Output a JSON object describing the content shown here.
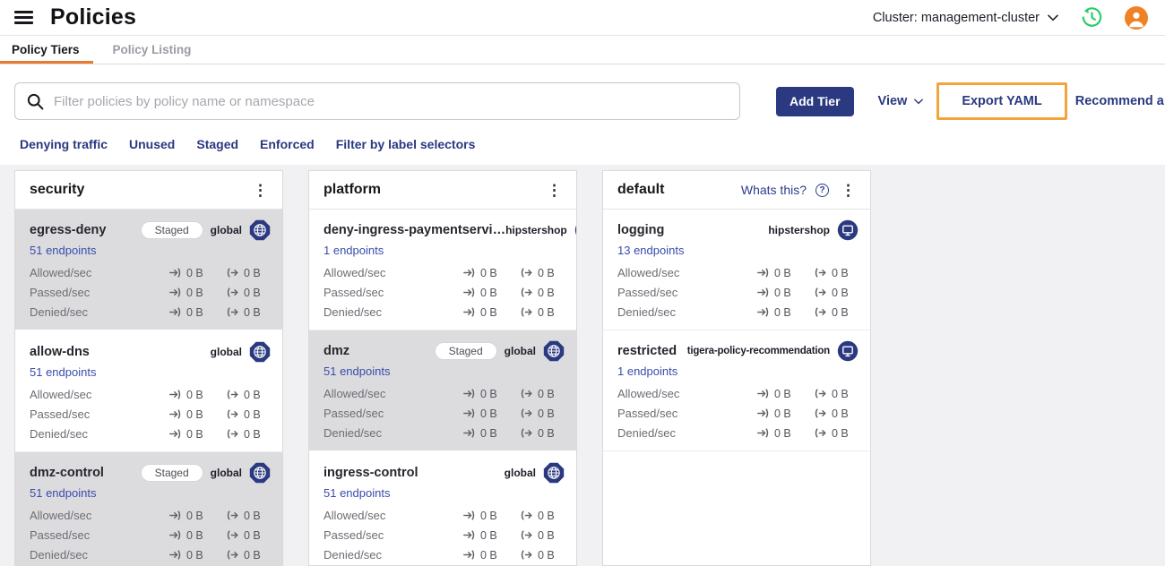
{
  "header": {
    "title": "Policies",
    "cluster_selector": "Cluster: management-cluster"
  },
  "tabs": {
    "policy_tiers": "Policy Tiers",
    "policy_listing": "Policy Listing"
  },
  "toolbar": {
    "search_placeholder": "Filter policies by policy name or namespace",
    "add_tier_button": "Add Tier",
    "view_button": "View",
    "export_yaml_button": "Export YAML",
    "recommend_button": "Recommend a Policy"
  },
  "quick_filters": [
    "Denying traffic",
    "Unused",
    "Staged",
    "Enforced",
    "Filter by label selectors"
  ],
  "icons": {
    "menu": "hamburger-icon",
    "search": "search-icon",
    "cluster_chevron": "chevron-down-icon",
    "history": "history-clock-icon",
    "avatar": "user-avatar-icon",
    "tier_menu": "kebab-menu-icon",
    "help": "question-circle-icon",
    "global_scope": "globe-badge-icon",
    "namespace_scope": "namespace-monitor-icon",
    "inbound": "ingress-arrow-icon",
    "outbound": "egress-arrow-icon"
  },
  "colors": {
    "accent_navy": "#2b3a80",
    "tab_underline_orange": "#e8792f",
    "export_highlight": "#f2a53d",
    "staged_card_bg": "#dcdcdf",
    "board_bg": "#f1f1f3",
    "history_icon_green": "#29cc6a",
    "avatar_orange": "#f08226"
  },
  "tiers": [
    {
      "name": "security",
      "whats_this": null,
      "policies": [
        {
          "name": "egress-deny",
          "staged_badge": "Staged",
          "scope": "global",
          "scope_icon": "globe-badge-icon",
          "endpoints": "51 endpoints",
          "metrics": [
            {
              "label": "Allowed/sec",
              "inbound": "0 B",
              "outbound": "0 B"
            },
            {
              "label": "Passed/sec",
              "inbound": "0 B",
              "outbound": "0 B"
            },
            {
              "label": "Denied/sec",
              "inbound": "0 B",
              "outbound": "0 B"
            }
          ]
        },
        {
          "name": "allow-dns",
          "staged_badge": null,
          "scope": "global",
          "scope_icon": "globe-badge-icon",
          "endpoints": "51 endpoints",
          "metrics": [
            {
              "label": "Allowed/sec",
              "inbound": "0 B",
              "outbound": "0 B"
            },
            {
              "label": "Passed/sec",
              "inbound": "0 B",
              "outbound": "0 B"
            },
            {
              "label": "Denied/sec",
              "inbound": "0 B",
              "outbound": "0 B"
            }
          ]
        },
        {
          "name": "dmz-control",
          "staged_badge": "Staged",
          "scope": "global",
          "scope_icon": "globe-badge-icon",
          "endpoints": "51 endpoints",
          "metrics": [
            {
              "label": "Allowed/sec",
              "inbound": "0 B",
              "outbound": "0 B"
            },
            {
              "label": "Passed/sec",
              "inbound": "0 B",
              "outbound": "0 B"
            },
            {
              "label": "Denied/sec",
              "inbound": "0 B",
              "outbound": "0 B"
            }
          ]
        }
      ]
    },
    {
      "name": "platform",
      "whats_this": null,
      "policies": [
        {
          "name": "deny-ingress-paymentservi…",
          "staged_badge": null,
          "scope": "hipstershop",
          "scope_icon": "namespace-monitor-icon",
          "endpoints": "1 endpoints",
          "metrics": [
            {
              "label": "Allowed/sec",
              "inbound": "0 B",
              "outbound": "0 B"
            },
            {
              "label": "Passed/sec",
              "inbound": "0 B",
              "outbound": "0 B"
            },
            {
              "label": "Denied/sec",
              "inbound": "0 B",
              "outbound": "0 B"
            }
          ]
        },
        {
          "name": "dmz",
          "staged_badge": "Staged",
          "scope": "global",
          "scope_icon": "globe-badge-icon",
          "endpoints": "51 endpoints",
          "metrics": [
            {
              "label": "Allowed/sec",
              "inbound": "0 B",
              "outbound": "0 B"
            },
            {
              "label": "Passed/sec",
              "inbound": "0 B",
              "outbound": "0 B"
            },
            {
              "label": "Denied/sec",
              "inbound": "0 B",
              "outbound": "0 B"
            }
          ]
        },
        {
          "name": "ingress-control",
          "staged_badge": null,
          "scope": "global",
          "scope_icon": "globe-badge-icon",
          "endpoints": "51 endpoints",
          "metrics": [
            {
              "label": "Allowed/sec",
              "inbound": "0 B",
              "outbound": "0 B"
            },
            {
              "label": "Passed/sec",
              "inbound": "0 B",
              "outbound": "0 B"
            },
            {
              "label": "Denied/sec",
              "inbound": "0 B",
              "outbound": "0 B"
            }
          ]
        }
      ]
    },
    {
      "name": "default",
      "whats_this": "Whats this?",
      "policies": [
        {
          "name": "logging",
          "staged_badge": null,
          "scope": "hipstershop",
          "scope_icon": "namespace-monitor-icon",
          "endpoints": "13 endpoints",
          "metrics": [
            {
              "label": "Allowed/sec",
              "inbound": "0 B",
              "outbound": "0 B"
            },
            {
              "label": "Passed/sec",
              "inbound": "0 B",
              "outbound": "0 B"
            },
            {
              "label": "Denied/sec",
              "inbound": "0 B",
              "outbound": "0 B"
            }
          ]
        },
        {
          "name": "restricted",
          "staged_badge": null,
          "scope": "tigera-policy-recommendation",
          "scope_icon": "namespace-monitor-icon",
          "endpoints": "1 endpoints",
          "metrics": [
            {
              "label": "Allowed/sec",
              "inbound": "0 B",
              "outbound": "0 B"
            },
            {
              "label": "Passed/sec",
              "inbound": "0 B",
              "outbound": "0 B"
            },
            {
              "label": "Denied/sec",
              "inbound": "0 B",
              "outbound": "0 B"
            }
          ]
        }
      ]
    }
  ]
}
